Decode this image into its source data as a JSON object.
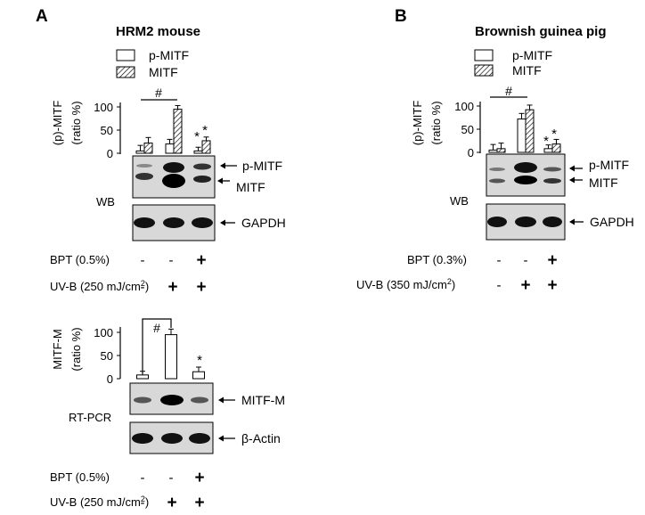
{
  "colors": {
    "ink": "#000000",
    "blot_bg": "#d8d8d8",
    "band": "#1a1a1a"
  },
  "panel_a": {
    "letter": "A",
    "title": "HRM2 mouse",
    "legend": {
      "p": "p-MITF",
      "m": "MITF"
    },
    "chart1": {
      "ylabel_line1": "(p)-MITF",
      "ylabel_line2": "(ratio %)",
      "ticks": [
        "100",
        "50",
        "0"
      ],
      "hash": "#",
      "star": "*"
    },
    "chart1_data": {
      "type": "bar",
      "categories": [
        "-/-",
        "-/UV",
        "BPT/UV"
      ],
      "series": [
        {
          "name": "p-MITF",
          "values": [
            5,
            20,
            5
          ],
          "errors": [
            12,
            10,
            8
          ]
        },
        {
          "name": "MITF",
          "values": [
            22,
            95,
            27
          ],
          "errors": [
            12,
            8,
            8
          ]
        }
      ],
      "ylim": [
        0,
        100
      ]
    },
    "wb": {
      "method": "WB",
      "label_p": "p-MITF",
      "label_m": "MITF",
      "label_g": "GAPDH"
    },
    "treat1": {
      "bpt_label": "BPT (0.5%)",
      "uvb_label": "UV-B (250 mJ/cm",
      "uvb_sup": "2",
      "uvb_close": ")",
      "bpt_marks": [
        "-",
        "-",
        "+"
      ],
      "uvb_marks": [
        "-",
        "+",
        "+"
      ]
    },
    "chart2": {
      "ylabel_line1": "MITF-M",
      "ylabel_line2": "(ratio %)",
      "ticks": [
        "100",
        "50",
        "0"
      ],
      "hash": "#",
      "star": "*"
    },
    "chart2_data": {
      "type": "bar",
      "categories": [
        "-/-",
        "-/UV",
        "BPT/UV"
      ],
      "series": [
        {
          "name": "MITF-M",
          "values": [
            8,
            95,
            15
          ],
          "errors": [
            8,
            12,
            10
          ]
        }
      ],
      "ylim": [
        0,
        100
      ]
    },
    "pcr": {
      "method": "RT-PCR",
      "label_m": "MITF-M",
      "label_a": "β-Actin"
    },
    "treat2": {
      "bpt_label": "BPT (0.5%)",
      "uvb_label": "UV-B (250 mJ/cm",
      "uvb_sup": "2",
      "uvb_close": ")",
      "bpt_marks": [
        "-",
        "-",
        "+"
      ],
      "uvb_marks": [
        "-",
        "+",
        "+"
      ]
    }
  },
  "panel_b": {
    "letter": "B",
    "title": "Brownish guinea pig",
    "legend": {
      "p": "p-MITF",
      "m": "MITF"
    },
    "chart": {
      "ylabel_line1": "(p)-MITF",
      "ylabel_line2": "(ratio %)",
      "ticks": [
        "100",
        "50",
        "0"
      ],
      "hash": "#",
      "star": "*"
    },
    "chart_data": {
      "type": "bar",
      "categories": [
        "-/-",
        "-/UV",
        "BPT/UV"
      ],
      "series": [
        {
          "name": "p-MITF",
          "values": [
            5,
            72,
            8
          ],
          "errors": [
            12,
            12,
            8
          ]
        },
        {
          "name": "MITF",
          "values": [
            8,
            92,
            18
          ],
          "errors": [
            12,
            10,
            10
          ]
        }
      ],
      "ylim": [
        0,
        100
      ]
    },
    "wb": {
      "method": "WB",
      "label_p": "p-MITF",
      "label_m": "MITF",
      "label_g": "GAPDH"
    },
    "treat": {
      "bpt_label": "BPT (0.3%)",
      "uvb_label": "UV-B (350 mJ/cm",
      "uvb_sup": "2",
      "uvb_close": ")",
      "bpt_marks": [
        "-",
        "-",
        "+"
      ],
      "uvb_marks": [
        "-",
        "+",
        "+"
      ]
    }
  }
}
